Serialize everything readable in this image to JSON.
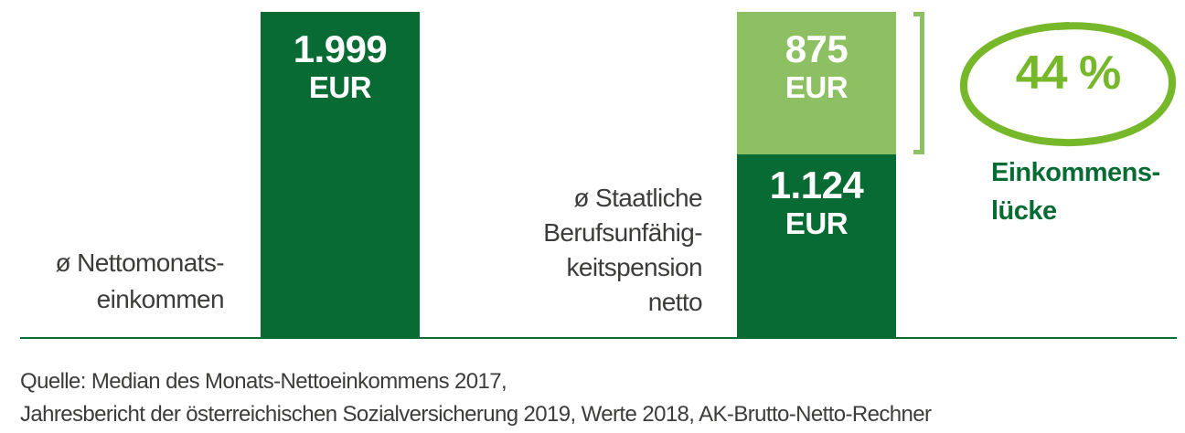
{
  "chart_data": {
    "type": "bar",
    "stacked": true,
    "orientation": "vertical",
    "unit": "EUR",
    "max": 1999,
    "grid": false,
    "bars": [
      {
        "label": "ø Nettomonats-\neinkommen",
        "total": 1999,
        "segments": [
          {
            "value": 1999,
            "display": "1.999",
            "unit": "EUR",
            "color": "#076B33"
          }
        ]
      },
      {
        "label": "ø Staatliche\nBerufsunfähig-\nkeitspension\nnetto",
        "total": 1999,
        "segments": [
          {
            "value": 875,
            "display": "875",
            "unit": "EUR",
            "color": "#8DC063"
          },
          {
            "value": 1124,
            "display": "1.124",
            "unit": "EUR",
            "color": "#076B33"
          }
        ]
      }
    ],
    "annotation": {
      "percentage": "44 %",
      "label": "Einkommens-\nlücke",
      "refers_to_value": 875
    },
    "source_lines": [
      "Quelle: Median des Monats-Nettoeinkommens 2017,",
      "Jahresbericht der österreichischen Sozialversicherung 2019, Werte 2018, AK-Brutto-Netto-Rechner"
    ]
  },
  "colors": {
    "dark_green": "#076B33",
    "light_green": "#8DC063",
    "accent_green": "#76B82A",
    "text": "#3C3C3B"
  }
}
